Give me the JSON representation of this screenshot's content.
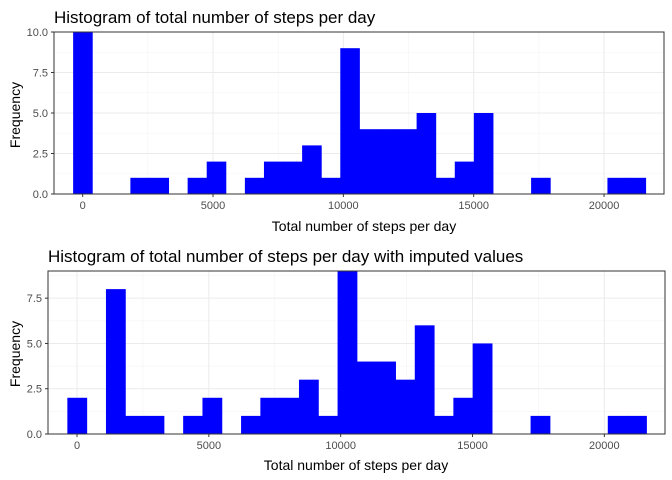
{
  "chart_data": [
    {
      "type": "bar",
      "title": "Histogram of total number of steps per day",
      "xlabel": "Total number of steps per day",
      "ylabel": "Frequency",
      "bar_color": "#0000ff",
      "grid": true,
      "bin_width": 732,
      "xlim": [
        -1100,
        22300
      ],
      "ylim": [
        0,
        10
      ],
      "x_ticks": [
        0,
        5000,
        10000,
        15000,
        20000
      ],
      "x_tick_labels": [
        "0",
        "5000",
        "10000",
        "15000",
        "20000"
      ],
      "y_ticks": [
        0,
        2.5,
        5,
        7.5,
        10
      ],
      "y_tick_labels": [
        "0.0",
        "2.5",
        "5.0",
        "7.5",
        "10.0"
      ],
      "bins": [
        {
          "x": 0,
          "count": 10
        },
        {
          "x": 2196,
          "count": 1
        },
        {
          "x": 2928,
          "count": 1
        },
        {
          "x": 4392,
          "count": 1
        },
        {
          "x": 5124,
          "count": 2
        },
        {
          "x": 6588,
          "count": 1
        },
        {
          "x": 7320,
          "count": 2
        },
        {
          "x": 8052,
          "count": 2
        },
        {
          "x": 8784,
          "count": 3
        },
        {
          "x": 9516,
          "count": 1
        },
        {
          "x": 10248,
          "count": 9
        },
        {
          "x": 10980,
          "count": 4
        },
        {
          "x": 11712,
          "count": 4
        },
        {
          "x": 12444,
          "count": 4
        },
        {
          "x": 13176,
          "count": 5
        },
        {
          "x": 13908,
          "count": 1
        },
        {
          "x": 14640,
          "count": 2
        },
        {
          "x": 15372,
          "count": 5
        },
        {
          "x": 17568,
          "count": 1
        },
        {
          "x": 20496,
          "count": 1
        },
        {
          "x": 21228,
          "count": 1
        }
      ]
    },
    {
      "type": "bar",
      "title": "Histogram of total number of steps per day with imputed values",
      "xlabel": "Total number of steps per day",
      "ylabel": "Frequency",
      "bar_color": "#0000ff",
      "grid": true,
      "bin_width": 732,
      "xlim": [
        -1100,
        22300
      ],
      "ylim": [
        0,
        9
      ],
      "x_ticks": [
        0,
        5000,
        10000,
        15000,
        20000
      ],
      "x_tick_labels": [
        "0",
        "5000",
        "10000",
        "15000",
        "20000"
      ],
      "y_ticks": [
        0,
        2.5,
        5,
        7.5
      ],
      "y_tick_labels": [
        "0.0",
        "2.5",
        "5.0",
        "7.5"
      ],
      "bins": [
        {
          "x": 0,
          "count": 2
        },
        {
          "x": 1464,
          "count": 8
        },
        {
          "x": 2196,
          "count": 1
        },
        {
          "x": 2928,
          "count": 1
        },
        {
          "x": 4392,
          "count": 1
        },
        {
          "x": 5124,
          "count": 2
        },
        {
          "x": 6588,
          "count": 1
        },
        {
          "x": 7320,
          "count": 2
        },
        {
          "x": 8052,
          "count": 2
        },
        {
          "x": 8784,
          "count": 3
        },
        {
          "x": 9516,
          "count": 1
        },
        {
          "x": 10248,
          "count": 9
        },
        {
          "x": 10980,
          "count": 4
        },
        {
          "x": 11712,
          "count": 4
        },
        {
          "x": 12444,
          "count": 3
        },
        {
          "x": 13176,
          "count": 6
        },
        {
          "x": 13908,
          "count": 1
        },
        {
          "x": 14640,
          "count": 2
        },
        {
          "x": 15372,
          "count": 5
        },
        {
          "x": 17568,
          "count": 1
        },
        {
          "x": 20496,
          "count": 1
        },
        {
          "x": 21228,
          "count": 1
        }
      ]
    }
  ]
}
